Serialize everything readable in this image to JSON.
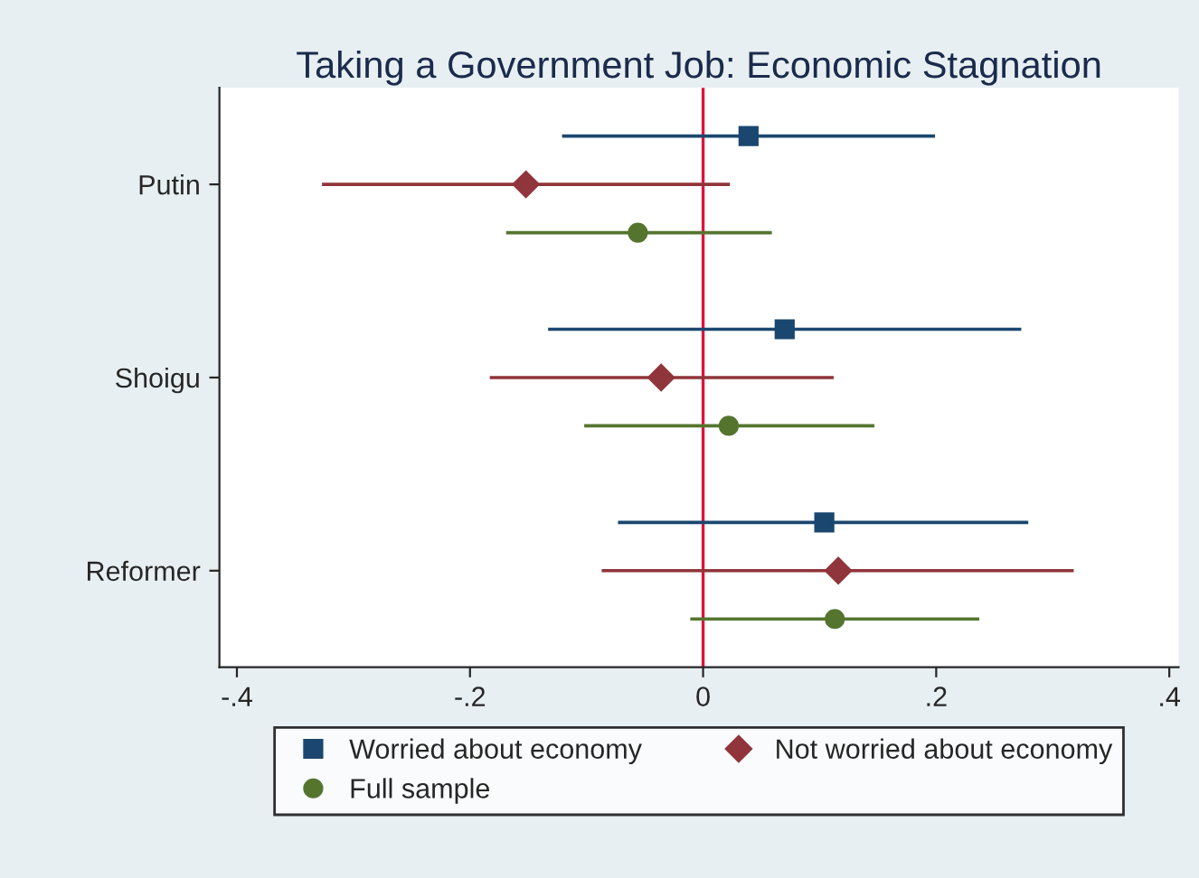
{
  "chart_data": {
    "type": "scatter",
    "orientation": "horizontal",
    "title": "Taking a Government Job: Economic Stagnation",
    "categories": [
      "Putin",
      "Shoigu",
      "Reformer"
    ],
    "series": [
      {
        "name": "Worried about economy",
        "color": "#1a476f",
        "marker": "square",
        "values": [
          0.039,
          0.07,
          0.104
        ],
        "errors": [
          [
            -0.121,
            0.199
          ],
          [
            -0.133,
            0.273
          ],
          [
            -0.073,
            0.279
          ]
        ]
      },
      {
        "name": "Not worried about economy",
        "color": "#90353b",
        "marker": "diamond",
        "values": [
          -0.152,
          -0.036,
          0.116
        ],
        "errors": [
          [
            -0.327,
            0.023
          ],
          [
            -0.183,
            0.112
          ],
          [
            -0.087,
            0.318
          ]
        ]
      },
      {
        "name": "Full sample",
        "color": "#55752f",
        "marker": "circle",
        "values": [
          -0.056,
          0.022,
          0.113
        ],
        "errors": [
          [
            -0.169,
            0.059
          ],
          [
            -0.102,
            0.147
          ],
          [
            -0.011,
            0.237
          ]
        ]
      }
    ],
    "xlim": [
      -0.415,
      0.408
    ],
    "xticks": [
      {
        "value": -0.4,
        "label": "-.4"
      },
      {
        "value": -0.2,
        "label": "-.2"
      },
      0,
      {
        "value": 0.2,
        "label": ".2"
      },
      {
        "value": 0.4,
        "label": ".4"
      }
    ],
    "ref_lines": [
      {
        "axis": "x",
        "value": 0,
        "color": "#dc143c"
      }
    ],
    "legend": "bottom",
    "grid": false
  }
}
